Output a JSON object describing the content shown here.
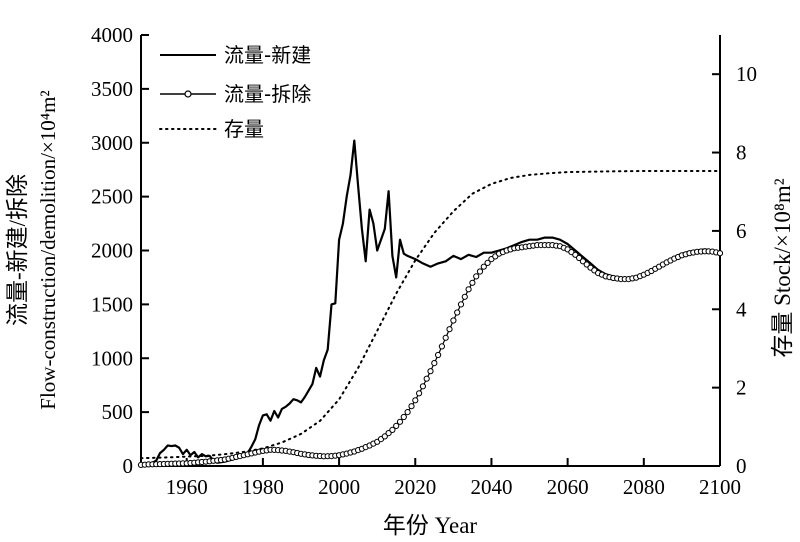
{
  "chart_data": {
    "type": "line",
    "x_axis": {
      "label": "年份 Year",
      "min": 1948,
      "max": 2100,
      "ticks": [
        1960,
        1980,
        2000,
        2020,
        2040,
        2060,
        2080,
        2100
      ]
    },
    "y_left": {
      "label_cn": "流量-新建/拆除",
      "label_en": "Flow-construction/demolition/×10⁴m²",
      "min": 0,
      "max": 4000,
      "ticks": [
        0,
        500,
        1000,
        1500,
        2000,
        2500,
        3000,
        3500,
        4000
      ]
    },
    "y_right": {
      "label": "存量 Stock/×10⁸m²",
      "min": 0,
      "max": 11,
      "ticks": [
        0,
        2,
        4,
        6,
        8,
        10
      ]
    },
    "legend": {
      "placement": "top-left"
    },
    "series": [
      {
        "name": "流量-新建",
        "axis": "left",
        "style": "solid",
        "points": [
          [
            1948,
            5
          ],
          [
            1950,
            10
          ],
          [
            1952,
            50
          ],
          [
            1953,
            120
          ],
          [
            1954,
            150
          ],
          [
            1955,
            190
          ],
          [
            1956,
            185
          ],
          [
            1957,
            190
          ],
          [
            1958,
            170
          ],
          [
            1959,
            110
          ],
          [
            1960,
            150
          ],
          [
            1961,
            100
          ],
          [
            1962,
            130
          ],
          [
            1963,
            80
          ],
          [
            1964,
            110
          ],
          [
            1965,
            90
          ],
          [
            1966,
            95
          ],
          [
            1967,
            50
          ],
          [
            1968,
            30
          ],
          [
            1970,
            40
          ],
          [
            1972,
            60
          ],
          [
            1974,
            80
          ],
          [
            1976,
            120
          ],
          [
            1977,
            180
          ],
          [
            1978,
            250
          ],
          [
            1979,
            380
          ],
          [
            1980,
            470
          ],
          [
            1981,
            480
          ],
          [
            1982,
            420
          ],
          [
            1983,
            510
          ],
          [
            1984,
            450
          ],
          [
            1985,
            530
          ],
          [
            1986,
            550
          ],
          [
            1987,
            580
          ],
          [
            1988,
            620
          ],
          [
            1989,
            610
          ],
          [
            1990,
            590
          ],
          [
            1991,
            640
          ],
          [
            1992,
            700
          ],
          [
            1993,
            760
          ],
          [
            1994,
            910
          ],
          [
            1995,
            830
          ],
          [
            1996,
            980
          ],
          [
            1997,
            1080
          ],
          [
            1998,
            1500
          ],
          [
            1999,
            1510
          ],
          [
            2000,
            2100
          ],
          [
            2001,
            2250
          ],
          [
            2002,
            2500
          ],
          [
            2003,
            2700
          ],
          [
            2004,
            3020
          ],
          [
            2005,
            2600
          ],
          [
            2006,
            2200
          ],
          [
            2007,
            1900
          ],
          [
            2008,
            2380
          ],
          [
            2009,
            2250
          ],
          [
            2010,
            2000
          ],
          [
            2011,
            2100
          ],
          [
            2012,
            2200
          ],
          [
            2013,
            2550
          ],
          [
            2014,
            1950
          ],
          [
            2015,
            1750
          ],
          [
            2016,
            2100
          ],
          [
            2017,
            1970
          ],
          [
            2018,
            1950
          ],
          [
            2020,
            1920
          ],
          [
            2022,
            1880
          ],
          [
            2024,
            1850
          ],
          [
            2026,
            1880
          ],
          [
            2028,
            1900
          ],
          [
            2030,
            1950
          ],
          [
            2032,
            1920
          ],
          [
            2034,
            1960
          ],
          [
            2036,
            1940
          ],
          [
            2038,
            1980
          ],
          [
            2040,
            1980
          ],
          [
            2042,
            2000
          ],
          [
            2044,
            2020
          ],
          [
            2046,
            2050
          ],
          [
            2048,
            2080
          ],
          [
            2050,
            2100
          ],
          [
            2052,
            2100
          ],
          [
            2054,
            2120
          ],
          [
            2056,
            2120
          ],
          [
            2058,
            2100
          ],
          [
            2060,
            2060
          ],
          [
            2062,
            2000
          ],
          [
            2064,
            1940
          ],
          [
            2066,
            1880
          ],
          [
            2068,
            1820
          ],
          [
            2070,
            1780
          ],
          [
            2072,
            1760
          ],
          [
            2074,
            1740
          ],
          [
            2076,
            1740
          ],
          [
            2078,
            1750
          ],
          [
            2080,
            1780
          ],
          [
            2082,
            1820
          ],
          [
            2084,
            1860
          ],
          [
            2086,
            1900
          ],
          [
            2088,
            1940
          ],
          [
            2090,
            1970
          ],
          [
            2092,
            1990
          ],
          [
            2094,
            2000
          ],
          [
            2096,
            2010
          ],
          [
            2098,
            2000
          ],
          [
            2100,
            1980
          ]
        ]
      },
      {
        "name": "流量-拆除",
        "axis": "left",
        "style": "solid-circles",
        "points": [
          [
            1948,
            10
          ],
          [
            1950,
            15
          ],
          [
            1955,
            20
          ],
          [
            1960,
            25
          ],
          [
            1965,
            40
          ],
          [
            1970,
            60
          ],
          [
            1975,
            100
          ],
          [
            1978,
            125
          ],
          [
            1980,
            140
          ],
          [
            1982,
            150
          ],
          [
            1984,
            148
          ],
          [
            1986,
            140
          ],
          [
            1988,
            128
          ],
          [
            1990,
            113
          ],
          [
            1992,
            102
          ],
          [
            1994,
            95
          ],
          [
            1996,
            90
          ],
          [
            1998,
            92
          ],
          [
            2000,
            100
          ],
          [
            2002,
            115
          ],
          [
            2004,
            135
          ],
          [
            2006,
            160
          ],
          [
            2008,
            190
          ],
          [
            2010,
            225
          ],
          [
            2012,
            275
          ],
          [
            2014,
            335
          ],
          [
            2016,
            410
          ],
          [
            2018,
            500
          ],
          [
            2020,
            610
          ],
          [
            2022,
            740
          ],
          [
            2024,
            880
          ],
          [
            2026,
            1030
          ],
          [
            2028,
            1190
          ],
          [
            2030,
            1350
          ],
          [
            2032,
            1500
          ],
          [
            2034,
            1640
          ],
          [
            2036,
            1760
          ],
          [
            2038,
            1850
          ],
          [
            2040,
            1920
          ],
          [
            2042,
            1970
          ],
          [
            2044,
            2000
          ],
          [
            2046,
            2020
          ],
          [
            2048,
            2030
          ],
          [
            2050,
            2040
          ],
          [
            2052,
            2050
          ],
          [
            2054,
            2050
          ],
          [
            2056,
            2050
          ],
          [
            2058,
            2040
          ],
          [
            2060,
            2010
          ],
          [
            2062,
            1960
          ],
          [
            2064,
            1900
          ],
          [
            2066,
            1840
          ],
          [
            2068,
            1790
          ],
          [
            2070,
            1760
          ],
          [
            2072,
            1745
          ],
          [
            2074,
            1735
          ],
          [
            2076,
            1735
          ],
          [
            2078,
            1748
          ],
          [
            2080,
            1775
          ],
          [
            2082,
            1810
          ],
          [
            2084,
            1850
          ],
          [
            2086,
            1890
          ],
          [
            2088,
            1925
          ],
          [
            2090,
            1955
          ],
          [
            2092,
            1975
          ],
          [
            2094,
            1988
          ],
          [
            2096,
            1993
          ],
          [
            2098,
            1990
          ],
          [
            2100,
            1975
          ]
        ]
      },
      {
        "name": "存量",
        "axis": "right",
        "style": "dotted",
        "points": [
          [
            1948,
            0.2
          ],
          [
            1955,
            0.22
          ],
          [
            1960,
            0.24
          ],
          [
            1965,
            0.26
          ],
          [
            1970,
            0.3
          ],
          [
            1975,
            0.36
          ],
          [
            1980,
            0.45
          ],
          [
            1985,
            0.6
          ],
          [
            1990,
            0.82
          ],
          [
            1995,
            1.15
          ],
          [
            2000,
            1.7
          ],
          [
            2005,
            2.5
          ],
          [
            2010,
            3.45
          ],
          [
            2015,
            4.4
          ],
          [
            2020,
            5.25
          ],
          [
            2025,
            5.95
          ],
          [
            2030,
            6.5
          ],
          [
            2035,
            6.95
          ],
          [
            2040,
            7.2
          ],
          [
            2045,
            7.35
          ],
          [
            2050,
            7.43
          ],
          [
            2055,
            7.47
          ],
          [
            2060,
            7.5
          ],
          [
            2070,
            7.52
          ],
          [
            2080,
            7.53
          ],
          [
            2090,
            7.53
          ],
          [
            2100,
            7.53
          ]
        ]
      }
    ]
  }
}
